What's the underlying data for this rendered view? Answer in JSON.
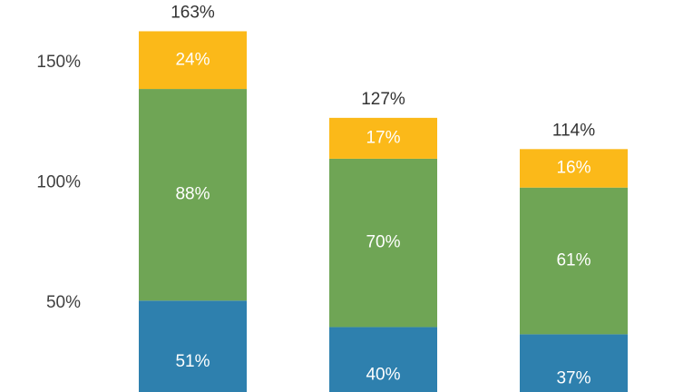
{
  "chart_data": {
    "type": "stacked_bar",
    "categories": [
      null,
      null,
      null
    ],
    "series": [
      {
        "color": "#2e80ae",
        "values": [
          51,
          40,
          37
        ],
        "value_labels": [
          "51%",
          "40%",
          "37%"
        ]
      },
      {
        "color": "#6fa555",
        "values": [
          88,
          70,
          61
        ],
        "value_labels": [
          "88%",
          "70%",
          "61%"
        ]
      },
      {
        "color": "#fbb919",
        "values": [
          24,
          17,
          16
        ],
        "value_labels": [
          "24%",
          "17%",
          "16%"
        ]
      }
    ],
    "totals": {
      "values": [
        163,
        127,
        114
      ],
      "value_labels": [
        "163%",
        "127%",
        "114%"
      ]
    },
    "ylim": [
      13,
      176
    ],
    "yticks": [
      {
        "value": 50,
        "label": "50%"
      },
      {
        "value": 100,
        "label": "100%"
      },
      {
        "value": 150,
        "label": "150%"
      }
    ],
    "grid": false
  }
}
